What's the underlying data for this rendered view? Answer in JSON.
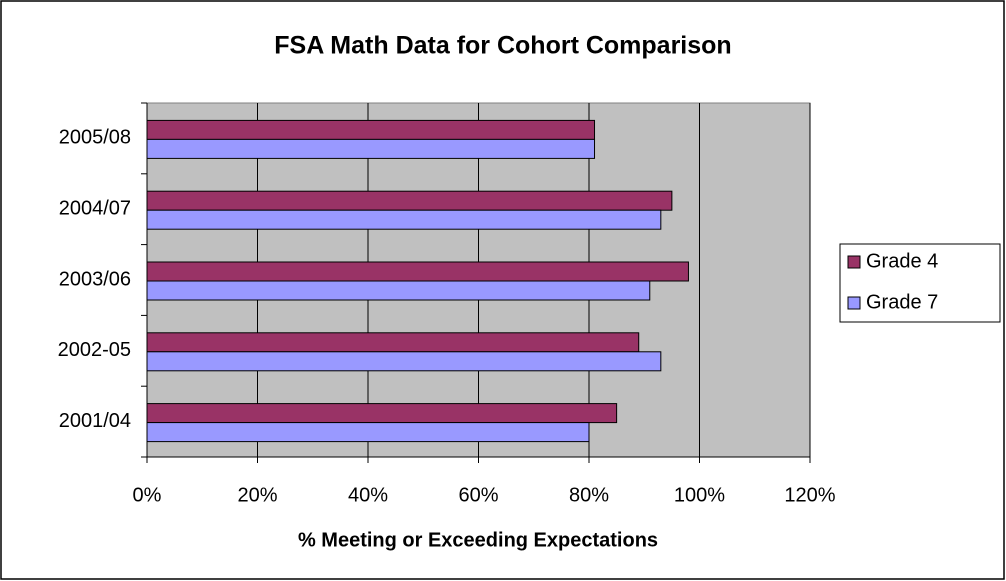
{
  "chart_data": {
    "type": "hbar",
    "title": "FSA Math Data for Cohort Comparison",
    "xlabel": "% Meeting or Exceeding Expectations",
    "categories": [
      "2001/04",
      "2002-05",
      "2003/06",
      "2004/07",
      "2005/08"
    ],
    "series": [
      {
        "name": "Grade 4",
        "color": "#993366",
        "values": [
          85,
          89,
          98,
          95,
          81
        ]
      },
      {
        "name": "Grade 7",
        "color": "#9999ff",
        "values": [
          80,
          93,
          91,
          93,
          81
        ]
      }
    ],
    "xlim": [
      0,
      120
    ],
    "xticks": [
      {
        "value": 0,
        "label": "0%"
      },
      {
        "value": 20,
        "label": "20%"
      },
      {
        "value": 40,
        "label": "40%"
      },
      {
        "value": 60,
        "label": "60%"
      },
      {
        "value": 80,
        "label": "80%"
      },
      {
        "value": 100,
        "label": "100%"
      },
      {
        "value": 120,
        "label": "120%"
      }
    ],
    "grid": true,
    "legend": "right",
    "plot_background": "#c0c0c0"
  }
}
